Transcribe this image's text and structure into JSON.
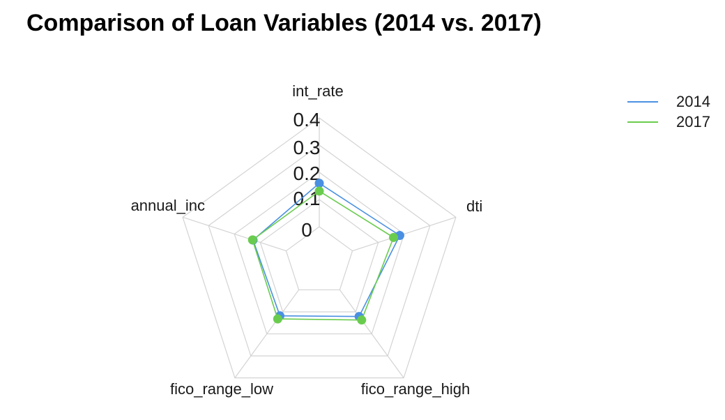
{
  "chart_data": {
    "type": "radar",
    "title": "Comparison of Loan Variables (2014 vs. 2017)",
    "axes": [
      "int_rate",
      "dti",
      "fico_range_high",
      "fico_range_low",
      "annual_inc"
    ],
    "radial_ticks": [
      "0",
      "0.1",
      "0.2",
      "0.3",
      "0.4"
    ],
    "rlim": [
      0,
      0.4
    ],
    "grid": true,
    "legend_position": "right",
    "series": [
      {
        "name": "2014",
        "color": "#4a90e2",
        "values": [
          0.16,
          0.183,
          0.121,
          0.118,
          0.128
        ]
      },
      {
        "name": "2017",
        "color": "#6acc4e",
        "values": [
          0.131,
          0.159,
          0.137,
          0.132,
          0.13
        ]
      }
    ]
  }
}
